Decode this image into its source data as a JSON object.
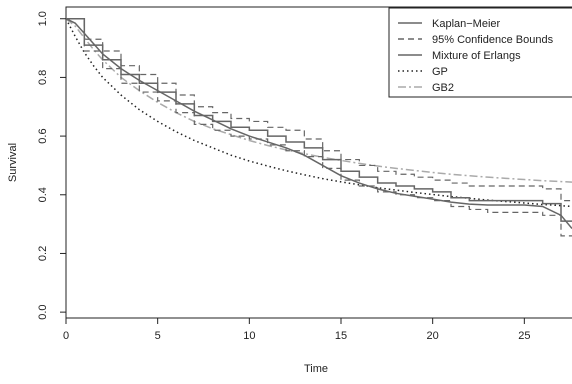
{
  "chart_data": {
    "type": "line",
    "title": "",
    "xlabel": "Time",
    "ylabel": "Survival",
    "xlim": [
      0,
      27.6
    ],
    "ylim": [
      -0.02,
      1.04
    ],
    "xticks": [
      0,
      5,
      10,
      15,
      20,
      25
    ],
    "yticks": [
      0.0,
      0.2,
      0.4,
      0.6,
      0.8,
      1.0
    ],
    "xtick_labels": [
      "0",
      "5",
      "10",
      "15",
      "20",
      "25"
    ],
    "ytick_labels": [
      "0.0",
      "0.2",
      "0.4",
      "0.6",
      "0.8",
      "1.0"
    ],
    "grid": false,
    "legend_position": "top-right",
    "series": [
      {
        "name": "Kaplan−Meier",
        "style": "step",
        "color": "#666666",
        "x": [
          0,
          1,
          2,
          3,
          4,
          5,
          6,
          7,
          8,
          9,
          10,
          11,
          12,
          13,
          14,
          15,
          16,
          17,
          18,
          19,
          20,
          21,
          22,
          23,
          24,
          25,
          26,
          27,
          27.6
        ],
        "y": [
          1.0,
          0.91,
          0.86,
          0.81,
          0.78,
          0.75,
          0.71,
          0.67,
          0.65,
          0.63,
          0.62,
          0.6,
          0.58,
          0.56,
          0.52,
          0.48,
          0.46,
          0.44,
          0.43,
          0.42,
          0.41,
          0.39,
          0.38,
          0.38,
          0.38,
          0.38,
          0.37,
          0.31,
          0.31
        ]
      },
      {
        "name": "95% Confidence Bounds",
        "style": "step",
        "dash": "dashed",
        "color": "#666666",
        "bands": [
          {
            "x": [
              0,
              1,
              2,
              3,
              4,
              5,
              6,
              7,
              8,
              9,
              10,
              11,
              12,
              13,
              14,
              15,
              16,
              17,
              18,
              19,
              20,
              21,
              22,
              23,
              24,
              25,
              26,
              27,
              27.6
            ],
            "y": [
              1.0,
              0.93,
              0.89,
              0.84,
              0.81,
              0.78,
              0.74,
              0.7,
              0.68,
              0.66,
              0.65,
              0.63,
              0.62,
              0.59,
              0.55,
              0.52,
              0.5,
              0.48,
              0.47,
              0.46,
              0.45,
              0.44,
              0.43,
              0.43,
              0.43,
              0.43,
              0.42,
              0.38,
              0.38
            ]
          },
          {
            "x": [
              0,
              1,
              2,
              3,
              4,
              5,
              6,
              7,
              8,
              9,
              10,
              11,
              12,
              13,
              14,
              15,
              16,
              17,
              18,
              19,
              20,
              21,
              22,
              23,
              24,
              25,
              26,
              27,
              27.6
            ],
            "y": [
              1.0,
              0.89,
              0.83,
              0.78,
              0.75,
              0.72,
              0.68,
              0.64,
              0.62,
              0.6,
              0.59,
              0.57,
              0.55,
              0.53,
              0.49,
              0.45,
              0.43,
              0.41,
              0.4,
              0.39,
              0.38,
              0.36,
              0.35,
              0.34,
              0.34,
              0.34,
              0.33,
              0.26,
              0.26
            ]
          }
        ]
      },
      {
        "name": "Mixture of Erlangs",
        "style": "line",
        "color": "#666666",
        "x": [
          0,
          0.5,
          1,
          1.5,
          2,
          3,
          4,
          5,
          6,
          7,
          8,
          9,
          10,
          11,
          12,
          13,
          14,
          15,
          16,
          17,
          18,
          19,
          20,
          21,
          22,
          23,
          24,
          25,
          26,
          27,
          27.6
        ],
        "y": [
          1.0,
          0.985,
          0.95,
          0.915,
          0.88,
          0.83,
          0.79,
          0.755,
          0.72,
          0.685,
          0.655,
          0.625,
          0.6,
          0.58,
          0.56,
          0.535,
          0.5,
          0.465,
          0.44,
          0.42,
          0.405,
          0.395,
          0.385,
          0.375,
          0.368,
          0.365,
          0.365,
          0.365,
          0.36,
          0.33,
          0.285
        ]
      },
      {
        "name": "GP",
        "style": "line",
        "dash": "dotted",
        "color": "#222222",
        "x": [
          0,
          0.5,
          1,
          1.5,
          2,
          3,
          4,
          5,
          6,
          7,
          8,
          9,
          10,
          11,
          12,
          13,
          14,
          15,
          16,
          17,
          18,
          19,
          20,
          21,
          22,
          23,
          24,
          25,
          26,
          27,
          27.6
        ],
        "y": [
          1.0,
          0.94,
          0.885,
          0.84,
          0.8,
          0.74,
          0.69,
          0.65,
          0.615,
          0.585,
          0.56,
          0.535,
          0.515,
          0.498,
          0.482,
          0.468,
          0.455,
          0.444,
          0.434,
          0.424,
          0.416,
          0.408,
          0.401,
          0.394,
          0.388,
          0.382,
          0.377,
          0.372,
          0.367,
          0.363,
          0.36
        ]
      },
      {
        "name": "GB2",
        "style": "line",
        "dash": "dashdot",
        "color": "#aaaaaa",
        "x": [
          0,
          0.5,
          1,
          1.5,
          2,
          3,
          4,
          5,
          6,
          7,
          8,
          9,
          10,
          11,
          12,
          13,
          14,
          15,
          16,
          17,
          18,
          19,
          20,
          21,
          22,
          23,
          24,
          25,
          26,
          27,
          27.6
        ],
        "y": [
          1.0,
          0.975,
          0.935,
          0.895,
          0.86,
          0.8,
          0.755,
          0.715,
          0.68,
          0.65,
          0.625,
          0.605,
          0.585,
          0.568,
          0.553,
          0.54,
          0.528,
          0.517,
          0.507,
          0.498,
          0.49,
          0.483,
          0.476,
          0.47,
          0.465,
          0.46,
          0.456,
          0.452,
          0.448,
          0.445,
          0.443
        ]
      }
    ]
  }
}
